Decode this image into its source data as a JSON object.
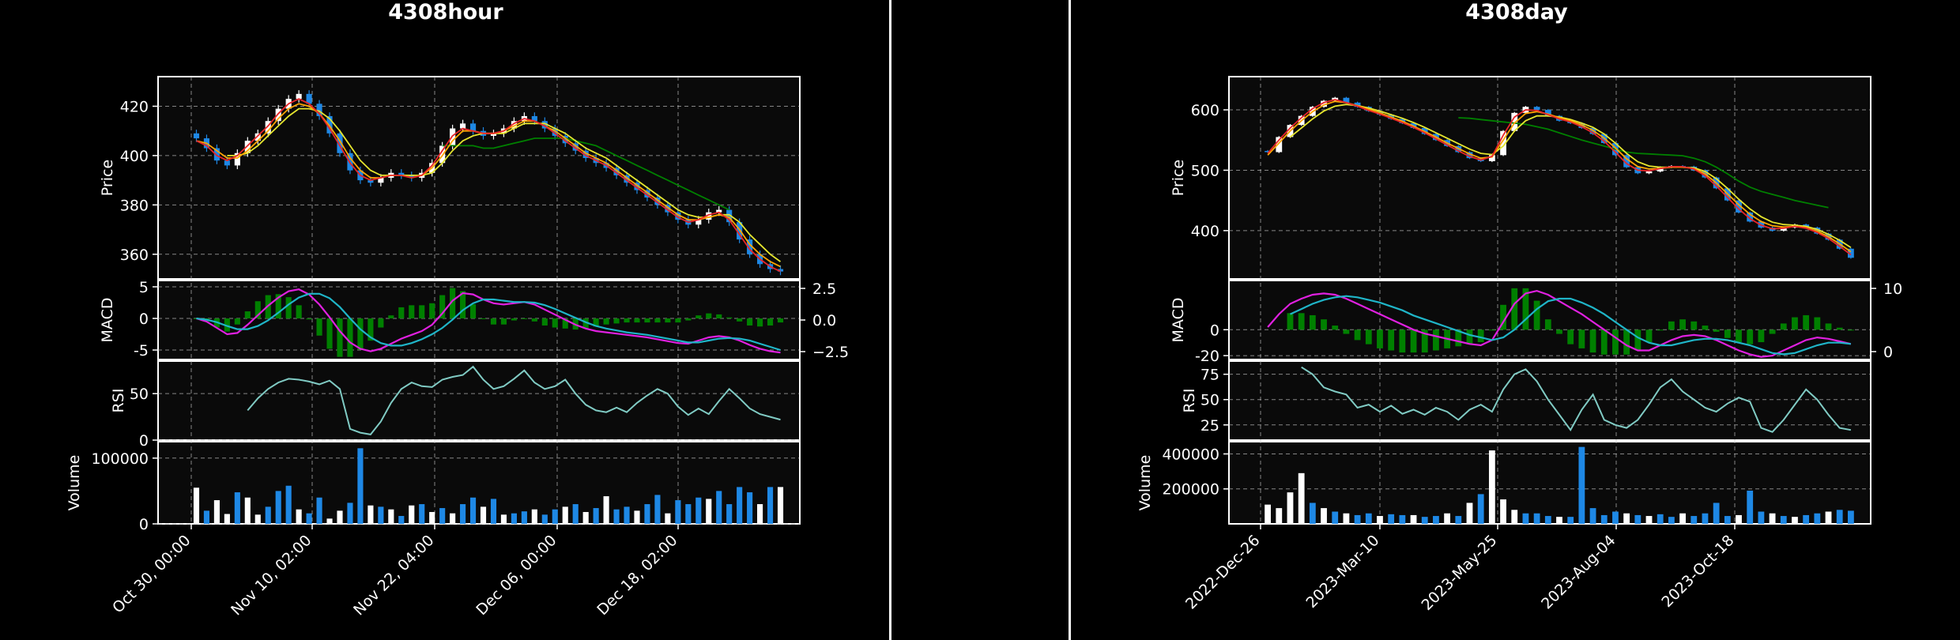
{
  "chart_data": [
    {
      "type": "candlestick",
      "title": "4308hour",
      "background": "#0a0a0a",
      "colors": {
        "up": "#ffffff",
        "down": "#1e88e5",
        "ma_short": "#e8262a",
        "ma_mid": "#ffa500",
        "ma_long": "#e6e62e",
        "ma_trend": "#008000",
        "macd": "#e020e0",
        "signal": "#1fb5c8",
        "hist": "#008000",
        "rsi": "#80cbc4"
      },
      "x_ticks": [
        "Oct 30, 00:00",
        "Nov 10, 02:00",
        "Nov 22, 04:00",
        "Dec 06, 00:00",
        "Dec 18, 02:00"
      ],
      "price": {
        "ylabel": "Price",
        "ylim": [
          350,
          432
        ],
        "yticks": [
          360,
          380,
          400,
          420
        ],
        "close": [
          407,
          403,
          398,
          396,
          401,
          406,
          409,
          414,
          419,
          423,
          425,
          421,
          416,
          409,
          401,
          394,
          390,
          389,
          391,
          393,
          392,
          391,
          393,
          397,
          404,
          411,
          413,
          410,
          408,
          409,
          411,
          414,
          416,
          414,
          411,
          408,
          405,
          402,
          399,
          397,
          395,
          392,
          389,
          386,
          383,
          380,
          377,
          374,
          372,
          374,
          377,
          378,
          373,
          366,
          360,
          356,
          354,
          353
        ],
        "ema_short": [
          406,
          404,
          400,
          398,
          400,
          404,
          408,
          412,
          417,
          421,
          423,
          421,
          417,
          411,
          404,
          397,
          392,
          390,
          391,
          392,
          392,
          391,
          392,
          396,
          402,
          408,
          411,
          410,
          409,
          409,
          410,
          413,
          415,
          414,
          412,
          409,
          406,
          403,
          400,
          398,
          396,
          393,
          390,
          387,
          384,
          381,
          378,
          375,
          373,
          374,
          376,
          377,
          374,
          368,
          362,
          358,
          355,
          353
        ],
        "ema_mid": [
          406,
          405,
          402,
          399,
          399,
          402,
          406,
          410,
          415,
          419,
          421,
          420,
          417,
          412,
          406,
          399,
          394,
          391,
          391,
          392,
          392,
          391,
          392,
          395,
          400,
          406,
          410,
          410,
          409,
          409,
          410,
          412,
          414,
          414,
          412,
          410,
          407,
          404,
          401,
          399,
          397,
          394,
          391,
          388,
          385,
          382,
          379,
          376,
          374,
          374,
          375,
          376,
          375,
          370,
          364,
          360,
          357,
          355
        ],
        "ema_long": [
          null,
          null,
          null,
          400,
          400,
          401,
          404,
          408,
          412,
          416,
          419,
          419,
          418,
          415,
          410,
          404,
          398,
          394,
          392,
          392,
          392,
          392,
          392,
          393,
          397,
          402,
          406,
          408,
          409,
          409,
          409,
          411,
          413,
          413,
          413,
          411,
          409,
          406,
          403,
          401,
          399,
          396,
          393,
          390,
          387,
          384,
          381,
          378,
          376,
          375,
          375,
          376,
          376,
          373,
          368,
          364,
          360,
          357
        ],
        "trend": [
          null,
          null,
          null,
          null,
          null,
          null,
          null,
          null,
          null,
          null,
          null,
          null,
          null,
          null,
          null,
          null,
          null,
          null,
          null,
          null,
          null,
          null,
          null,
          null,
          404,
          404,
          404,
          404,
          403,
          403,
          404,
          405,
          406,
          407,
          407,
          407,
          407,
          406,
          405,
          404,
          402,
          400,
          398,
          396,
          394,
          392,
          390,
          388,
          386,
          384,
          382,
          380,
          378,
          null,
          null,
          null,
          null,
          null
        ]
      },
      "macd": {
        "ylabel": "MACD",
        "ylim": [
          -6.5,
          6
        ],
        "left_yticks": [
          -5,
          0,
          5
        ],
        "right_yticks": [
          "2.5",
          "0.0",
          "−2.5"
        ],
        "macd": [
          0,
          -0.5,
          -1.5,
          -2.5,
          -2.3,
          -1.0,
          0.5,
          2.0,
          3.3,
          4.3,
          4.6,
          3.8,
          2.2,
          0.2,
          -2.0,
          -3.8,
          -4.8,
          -5.2,
          -4.8,
          -4.0,
          -3.2,
          -2.6,
          -2.0,
          -1.0,
          0.8,
          2.8,
          4.0,
          3.8,
          3.0,
          2.4,
          2.2,
          2.4,
          2.6,
          2.2,
          1.4,
          0.6,
          -0.2,
          -1.0,
          -1.6,
          -2.0,
          -2.2,
          -2.4,
          -2.6,
          -2.8,
          -3.0,
          -3.3,
          -3.6,
          -3.9,
          -4.0,
          -3.5,
          -3.0,
          -2.8,
          -3.0,
          -3.5,
          -4.2,
          -4.8,
          -5.2,
          -5.4
        ],
        "signal": [
          0,
          -0.2,
          -0.6,
          -1.2,
          -1.7,
          -1.7,
          -1.2,
          -0.3,
          0.9,
          2.2,
          3.3,
          3.9,
          3.9,
          3.2,
          1.8,
          0.0,
          -1.7,
          -3.0,
          -3.9,
          -4.3,
          -4.3,
          -3.9,
          -3.3,
          -2.5,
          -1.5,
          -0.2,
          1.3,
          2.4,
          3.0,
          3.0,
          2.8,
          2.6,
          2.6,
          2.5,
          2.1,
          1.5,
          0.8,
          0.1,
          -0.6,
          -1.2,
          -1.6,
          -1.9,
          -2.2,
          -2.4,
          -2.6,
          -2.9,
          -3.2,
          -3.5,
          -3.8,
          -3.8,
          -3.5,
          -3.2,
          -3.1,
          -3.2,
          -3.5,
          -4.0,
          -4.5,
          -5.0
        ]
      },
      "rsi": {
        "ylabel": "RSI",
        "ylim": [
          0,
          85
        ],
        "yticks": [
          0,
          50
        ],
        "values": [
          null,
          null,
          null,
          null,
          null,
          32,
          45,
          55,
          62,
          66,
          65,
          63,
          60,
          64,
          55,
          12,
          8,
          6,
          20,
          40,
          55,
          62,
          58,
          57,
          65,
          68,
          70,
          79,
          65,
          55,
          58,
          66,
          75,
          62,
          55,
          58,
          65,
          50,
          38,
          32,
          30,
          35,
          30,
          40,
          48,
          55,
          50,
          36,
          27,
          34,
          28,
          42,
          55,
          45,
          34,
          28,
          25,
          22
        ]
      },
      "volume": {
        "ylabel": "Volume",
        "ylim": [
          0,
          125000
        ],
        "yticks": [
          0,
          100000
        ],
        "values": [
          55000,
          20000,
          36000,
          15000,
          48000,
          40000,
          14000,
          26000,
          50000,
          58000,
          22000,
          16000,
          40000,
          8000,
          20000,
          32000,
          115000,
          28000,
          26000,
          22000,
          12000,
          28000,
          30000,
          18000,
          24000,
          16000,
          30000,
          40000,
          26000,
          38000,
          14000,
          16000,
          19000,
          22000,
          14000,
          22000,
          26000,
          30000,
          18000,
          24000,
          42000,
          22000,
          26000,
          20000,
          30000,
          44000,
          16000,
          36000,
          30000,
          40000,
          38000,
          50000,
          30000,
          56000,
          48000,
          30000,
          56000,
          56000
        ],
        "up": [
          1,
          0,
          1,
          1,
          0,
          1,
          1,
          0,
          0,
          0,
          1,
          0,
          0,
          1,
          1,
          0,
          0,
          1,
          0,
          1,
          0,
          1,
          0,
          1,
          0,
          1,
          0,
          0,
          1,
          0,
          1,
          0,
          0,
          1,
          0,
          0,
          1,
          0,
          1,
          0,
          1,
          0,
          0,
          1,
          0,
          0,
          1,
          0,
          0,
          0,
          1,
          0,
          0,
          0,
          0,
          1,
          0,
          1
        ]
      }
    },
    {
      "type": "candlestick",
      "title": "4308day",
      "background": "#0a0a0a",
      "colors": {
        "up": "#ffffff",
        "down": "#1e88e5",
        "ma_short": "#e8262a",
        "ma_mid": "#ffa500",
        "ma_long": "#e6e62e",
        "ma_trend": "#008000",
        "macd": "#e020e0",
        "signal": "#1fb5c8",
        "hist": "#008000",
        "rsi": "#80cbc4"
      },
      "x_ticks": [
        "2022-Dec-26",
        "2023-Mar-10",
        "2023-May-25",
        "2023-Aug-04",
        "2023-Oct-18"
      ],
      "price": {
        "ylabel": "Price",
        "ylim": [
          320,
          655
        ],
        "yticks": [
          400,
          500,
          600
        ],
        "close": [
          530,
          555,
          575,
          590,
          605,
          615,
          620,
          612,
          605,
          598,
          592,
          585,
          578,
          570,
          560,
          550,
          540,
          530,
          520,
          515,
          525,
          565,
          595,
          605,
          600,
          590,
          582,
          578,
          570,
          560,
          545,
          525,
          505,
          495,
          498,
          505,
          507,
          506,
          500,
          488,
          470,
          450,
          430,
          415,
          405,
          400,
          405,
          410,
          405,
          395,
          385,
          370,
          355
        ],
        "ema_short": [
          528,
          550,
          570,
          587,
          602,
          612,
          617,
          612,
          606,
          599,
          593,
          586,
          579,
          571,
          562,
          552,
          542,
          532,
          523,
          517,
          523,
          558,
          588,
          600,
          599,
          592,
          585,
          580,
          572,
          562,
          548,
          530,
          511,
          500,
          499,
          503,
          506,
          506,
          502,
          491,
          474,
          455,
          436,
          420,
          409,
          403,
          404,
          407,
          404,
          397,
          387,
          374,
          360
        ],
        "ema_mid": [
          525,
          545,
          565,
          582,
          597,
          608,
          614,
          612,
          607,
          601,
          595,
          588,
          581,
          573,
          564,
          555,
          545,
          536,
          527,
          520,
          522,
          550,
          578,
          594,
          597,
          593,
          587,
          582,
          575,
          566,
          553,
          537,
          519,
          506,
          502,
          503,
          505,
          505,
          503,
          494,
          479,
          461,
          443,
          427,
          415,
          408,
          406,
          407,
          405,
          399,
          390,
          378,
          365
        ],
        "ema_long": [
          null,
          null,
          555,
          570,
          585,
          598,
          606,
          609,
          607,
          603,
          598,
          592,
          586,
          579,
          571,
          562,
          553,
          544,
          535,
          528,
          526,
          540,
          565,
          582,
          590,
          590,
          588,
          584,
          578,
          571,
          560,
          545,
          528,
          514,
          507,
          505,
          505,
          505,
          504,
          498,
          486,
          470,
          452,
          436,
          423,
          414,
          410,
          409,
          407,
          402,
          394,
          384,
          372
        ],
        "trend": [
          null,
          null,
          null,
          null,
          null,
          null,
          null,
          null,
          null,
          null,
          null,
          null,
          null,
          null,
          null,
          null,
          null,
          587,
          586,
          584,
          582,
          580,
          578,
          576,
          572,
          568,
          562,
          556,
          550,
          545,
          540,
          535,
          530,
          528,
          527,
          526,
          525,
          524,
          520,
          514,
          505,
          494,
          482,
          472,
          465,
          460,
          455,
          450,
          446,
          442,
          438,
          null,
          null
        ]
      },
      "macd": {
        "ylabel": "MACD",
        "ylim": [
          -23,
          38
        ],
        "left_yticks": [
          -20,
          0
        ],
        "right_yticks": [
          "10",
          "0"
        ],
        "macd": [
          2,
          12,
          20,
          24,
          27,
          28,
          27,
          24,
          20,
          16,
          12,
          8,
          4,
          0,
          -3,
          -5,
          -7,
          -9,
          -11,
          -12,
          -8,
          6,
          20,
          28,
          30,
          27,
          22,
          17,
          12,
          6,
          0,
          -6,
          -12,
          -16,
          -16,
          -12,
          -8,
          -5,
          -4,
          -5,
          -8,
          -12,
          -16,
          -19,
          -21,
          -20,
          -16,
          -12,
          -8,
          -6,
          -7,
          -9,
          -11
        ],
        "signal": [
          null,
          null,
          12,
          16,
          20,
          23,
          25,
          26,
          25,
          23,
          21,
          18,
          15,
          11,
          8,
          5,
          2,
          -1,
          -4,
          -6,
          -8,
          -6,
          0,
          8,
          16,
          22,
          24,
          24,
          21,
          17,
          12,
          6,
          0,
          -6,
          -10,
          -12,
          -12,
          -10,
          -8,
          -7,
          -7,
          -8,
          -10,
          -12,
          -15,
          -18,
          -19,
          -18,
          -15,
          -12,
          -10,
          -10,
          -11
        ]
      },
      "rsi": {
        "ylabel": "RSI",
        "ylim": [
          10,
          88
        ],
        "yticks": [
          25,
          50,
          75
        ],
        "values": [
          null,
          null,
          null,
          82,
          75,
          62,
          58,
          55,
          42,
          45,
          38,
          44,
          36,
          40,
          35,
          42,
          38,
          30,
          40,
          45,
          38,
          60,
          75,
          80,
          68,
          50,
          35,
          20,
          40,
          55,
          30,
          25,
          22,
          30,
          45,
          62,
          70,
          58,
          50,
          42,
          38,
          46,
          52,
          48,
          22,
          18,
          30,
          45,
          60,
          50,
          35,
          22,
          20
        ]
      },
      "volume": {
        "ylabel": "Volume",
        "ylim": [
          0,
          470000
        ],
        "yticks": [
          200000,
          400000
        ],
        "values": [
          110000,
          90000,
          180000,
          290000,
          120000,
          90000,
          70000,
          60000,
          50000,
          60000,
          45000,
          55000,
          50000,
          50000,
          40000,
          45000,
          60000,
          45000,
          120000,
          170000,
          420000,
          140000,
          80000,
          60000,
          60000,
          45000,
          40000,
          40000,
          440000,
          90000,
          50000,
          70000,
          60000,
          50000,
          45000,
          55000,
          40000,
          60000,
          45000,
          60000,
          120000,
          45000,
          50000,
          190000,
          70000,
          60000,
          45000,
          40000,
          50000,
          60000,
          70000,
          80000,
          75000
        ],
        "up": [
          1,
          1,
          1,
          1,
          0,
          1,
          0,
          1,
          0,
          0,
          1,
          0,
          0,
          1,
          0,
          0,
          1,
          0,
          1,
          0,
          1,
          1,
          1,
          0,
          0,
          0,
          1,
          0,
          0,
          0,
          0,
          0,
          1,
          0,
          1,
          0,
          0,
          1,
          0,
          0,
          0,
          0,
          1,
          0,
          0,
          1,
          0,
          1,
          0,
          0,
          1,
          0,
          0
        ]
      }
    }
  ]
}
